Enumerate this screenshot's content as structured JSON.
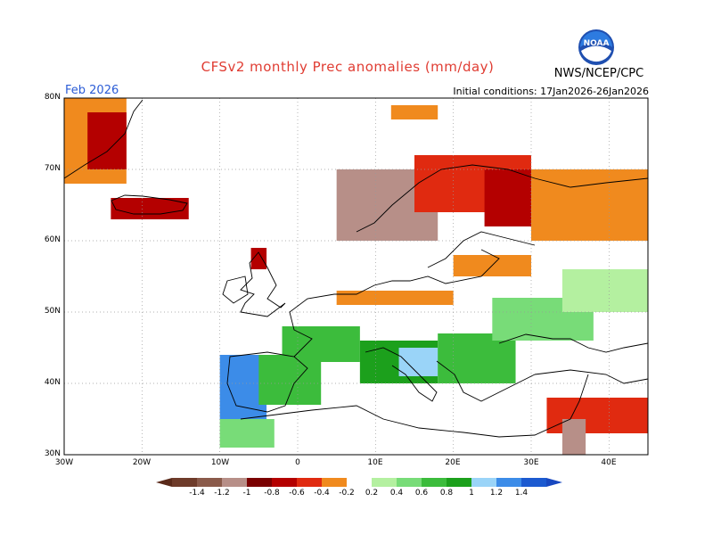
{
  "header": {
    "title": "CFSv2 monthly Prec anomalies (mm/day)",
    "agency": "NWS/NCEP/CPC",
    "month": "Feb 2026",
    "initial_conditions": "Initial conditions: 17Jan2026-26Jan2026",
    "logo_text": "NOAA"
  },
  "colors": {
    "title": "#e03c32",
    "month": "#2b5cd6",
    "grid": "#999999",
    "land": "#ffffff",
    "coast": "#000000"
  },
  "map": {
    "lon_range": [
      -30,
      45
    ],
    "lat_range": [
      30,
      80
    ],
    "lat_labels": [
      "30N",
      "40N",
      "50N",
      "60N",
      "70N",
      "80N"
    ],
    "lon_labels": [
      "30W",
      "20W",
      "10W",
      "0",
      "10E",
      "20E",
      "30E",
      "40E"
    ],
    "anomaly_patches": [
      {
        "region": "Greenland SE",
        "lon": [
          -30,
          -22
        ],
        "lat": [
          68,
          80
        ],
        "value": -0.4
      },
      {
        "region": "Greenland coast",
        "lon": [
          -27,
          -22
        ],
        "lat": [
          70,
          78
        ],
        "value": -0.8
      },
      {
        "region": "Iceland",
        "lon": [
          -24,
          -14
        ],
        "lat": [
          63,
          66
        ],
        "value": -0.8
      },
      {
        "region": "Svalbard",
        "lon": [
          12,
          18
        ],
        "lat": [
          77,
          79
        ],
        "value": -0.4
      },
      {
        "region": "Norway coast",
        "lon": [
          5,
          18
        ],
        "lat": [
          60,
          70
        ],
        "value": -1.2
      },
      {
        "region": "N Scandinavia",
        "lon": [
          15,
          30
        ],
        "lat": [
          64,
          72
        ],
        "value": -0.6
      },
      {
        "region": "Finland",
        "lon": [
          24,
          32
        ],
        "lat": [
          62,
          70
        ],
        "value": -0.8
      },
      {
        "region": "NW Russia",
        "lon": [
          30,
          45
        ],
        "lat": [
          60,
          70
        ],
        "value": -0.4
      },
      {
        "region": "Baltic",
        "lon": [
          20,
          30
        ],
        "lat": [
          55,
          58
        ],
        "value": -0.4
      },
      {
        "region": "Central Europe",
        "lon": [
          5,
          20
        ],
        "lat": [
          51,
          53
        ],
        "value": -0.4
      },
      {
        "region": "Scotland",
        "lon": [
          -6,
          -4
        ],
        "lat": [
          56,
          59
        ],
        "value": -0.8
      },
      {
        "region": "Iberia W",
        "lon": [
          -10,
          -4
        ],
        "lat": [
          35,
          44
        ],
        "value": 1.2
      },
      {
        "region": "Iberia",
        "lon": [
          -5,
          3
        ],
        "lat": [
          37,
          44
        ],
        "value": 0.6
      },
      {
        "region": "France S",
        "lon": [
          -2,
          8
        ],
        "lat": [
          43,
          48
        ],
        "value": 0.6
      },
      {
        "region": "Italy",
        "lon": [
          8,
          18
        ],
        "lat": [
          40,
          46
        ],
        "value": 0.8
      },
      {
        "region": "Adriatic",
        "lon": [
          13,
          19
        ],
        "lat": [
          41,
          45
        ],
        "value": 1.0
      },
      {
        "region": "Balkans",
        "lon": [
          18,
          28
        ],
        "lat": [
          40,
          47
        ],
        "value": 0.6
      },
      {
        "region": "Ukraine",
        "lon": [
          25,
          38
        ],
        "lat": [
          46,
          52
        ],
        "value": 0.4
      },
      {
        "region": "Russia W",
        "lon": [
          34,
          45
        ],
        "lat": [
          50,
          56
        ],
        "value": 0.2
      },
      {
        "region": "Morocco",
        "lon": [
          -10,
          -3
        ],
        "lat": [
          31,
          35
        ],
        "value": 0.4
      },
      {
        "region": "E Med",
        "lon": [
          32,
          45
        ],
        "lat": [
          33,
          38
        ],
        "value": -0.6
      },
      {
        "region": "Levant",
        "lon": [
          34,
          37
        ],
        "lat": [
          30,
          35
        ],
        "value": -1.2
      }
    ]
  },
  "colorbar": {
    "labels": [
      "-1.4",
      "-1.2",
      "-1",
      "-0.8",
      "-0.6",
      "-0.4",
      "-0.2",
      "0.2",
      "0.4",
      "0.6",
      "0.8",
      "1",
      "1.2",
      "1.4"
    ],
    "colors": [
      "#6e3b2a",
      "#8a5a4a",
      "#b78f88",
      "#7a0000",
      "#b40000",
      "#e02a10",
      "#f08a1e",
      "#ffffff",
      "#b4f0a0",
      "#78dc78",
      "#3cbc3c",
      "#1ca01c",
      "#9ad4f8",
      "#3c8ce8",
      "#1c5ad0"
    ],
    "arrow_left_color": "#5a2a1a",
    "arrow_right_color": "#1848c0"
  }
}
